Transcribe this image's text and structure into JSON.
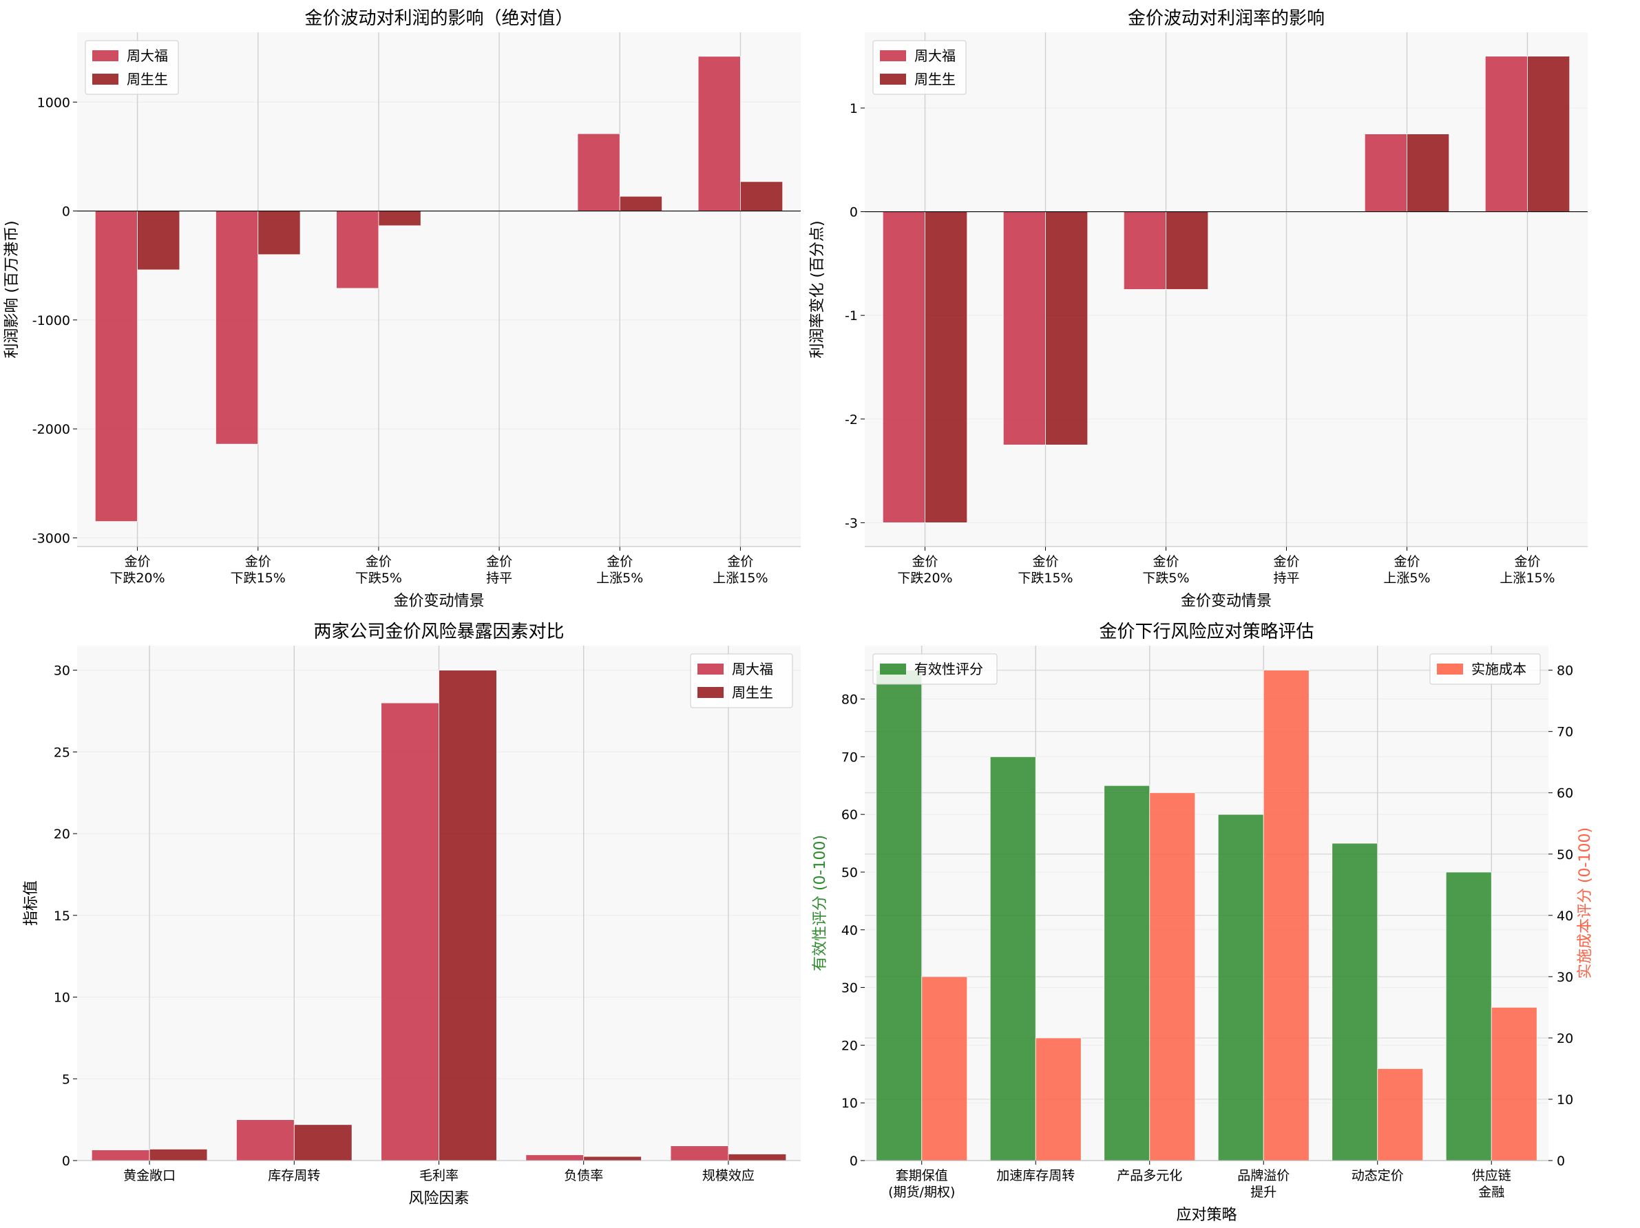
{
  "colors": {
    "chow_tai_fook": "#C8344A",
    "chow_sang_sang": "#951A1D",
    "effectiveness": "#2E8B2E",
    "cost": "#FF6347",
    "plot_bg": "#F8F8F8",
    "grid": "#DDDDDD"
  },
  "chart_data": [
    {
      "type": "bar",
      "title": "金价波动对利润的影响（绝对值）",
      "xlabel": "金价变动情景",
      "ylabel": "利润影响 (百万港币)",
      "categories": [
        "金价\n下跌20%",
        "金价\n下跌15%",
        "金价\n下跌5%",
        "金价\n持平",
        "金价\n上涨5%",
        "金价\n上涨15%"
      ],
      "series": [
        {
          "name": "周大福",
          "values": [
            -2850,
            -2140,
            -710,
            0,
            710,
            1420
          ]
        },
        {
          "name": "周生生",
          "values": [
            -540,
            -400,
            -135,
            0,
            135,
            270
          ]
        }
      ],
      "ylim": [
        -3080,
        1640
      ],
      "yticks": [
        -3000,
        -2000,
        -1000,
        0,
        1000
      ],
      "legend": "top-left",
      "grid": "x"
    },
    {
      "type": "bar",
      "title": "金价波动对利润率的影响",
      "xlabel": "金价变动情景",
      "ylabel": "利润率变化 (百分点)",
      "categories": [
        "金价\n下跌20%",
        "金价\n下跌15%",
        "金价\n下跌5%",
        "金价\n持平",
        "金价\n上涨5%",
        "金价\n上涨15%"
      ],
      "series": [
        {
          "name": "周大福",
          "values": [
            -3.0,
            -2.25,
            -0.75,
            0,
            0.75,
            1.5
          ]
        },
        {
          "name": "周生生",
          "values": [
            -3.0,
            -2.25,
            -0.75,
            0,
            0.75,
            1.5
          ]
        }
      ],
      "ylim": [
        -3.23,
        1.73
      ],
      "yticks": [
        -3,
        -2,
        -1,
        0,
        1
      ],
      "legend": "top-left",
      "grid": "x"
    },
    {
      "type": "bar",
      "title": "两家公司金价风险暴露因素对比",
      "xlabel": "风险因素",
      "ylabel": "指标值",
      "categories": [
        "黄金敞口",
        "库存周转",
        "毛利率",
        "负债率",
        "规模效应"
      ],
      "series": [
        {
          "name": "周大福",
          "values": [
            0.65,
            2.5,
            28,
            0.35,
            0.9
          ]
        },
        {
          "name": "周生生",
          "values": [
            0.7,
            2.2,
            30,
            0.25,
            0.4
          ]
        }
      ],
      "ylim": [
        0,
        31.5
      ],
      "yticks": [
        0,
        5,
        10,
        15,
        20,
        25,
        30
      ],
      "legend": "top-right",
      "grid": "x"
    },
    {
      "type": "bar",
      "title": "金价下行风险应对策略评估",
      "xlabel": "应对策略",
      "ylabel": "有效性评分 (0-100)",
      "ylabel_right": "实施成本评分 (0-100)",
      "categories": [
        "套期保值\n(期货/期权)",
        "加速库存周转",
        "产品多元化",
        "品牌溢价\n提升",
        "动态定价",
        "供应链\n金融"
      ],
      "series": [
        {
          "name": "有效性评分",
          "axis": "left",
          "values": [
            85,
            70,
            65,
            60,
            55,
            50
          ]
        },
        {
          "name": "实施成本",
          "axis": "right",
          "values": [
            30,
            20,
            60,
            80,
            15,
            25
          ]
        }
      ],
      "ylim": [
        0,
        89.25
      ],
      "yticks": [
        0,
        10,
        20,
        30,
        40,
        50,
        60,
        70,
        80
      ],
      "ylim_right": [
        0,
        84
      ],
      "yticks_right": [
        0,
        10,
        20,
        30,
        40,
        50,
        60,
        70,
        80
      ],
      "legend_left": "top-left",
      "legend_right": "top-right",
      "grid": "both"
    }
  ]
}
